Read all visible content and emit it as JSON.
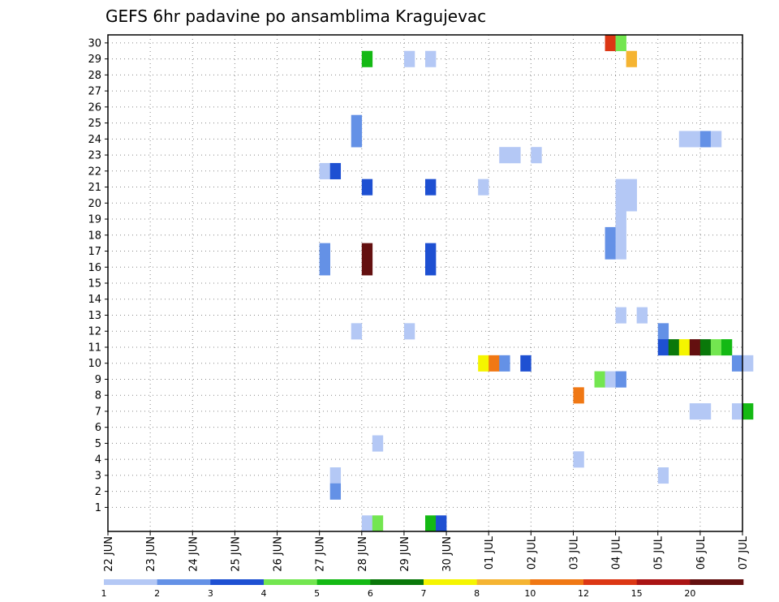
{
  "chart_data": {
    "type": "heatmap",
    "title": "GEFS 6hr padavine po ansamblima Kragujevac",
    "y_categories": [
      "1",
      "2",
      "3",
      "4",
      "5",
      "6",
      "7",
      "8",
      "9",
      "10",
      "11",
      "12",
      "13",
      "14",
      "15",
      "16",
      "17",
      "18",
      "19",
      "20",
      "21",
      "22",
      "23",
      "24",
      "25",
      "26",
      "27",
      "28",
      "29",
      "30"
    ],
    "x_tick_labels": [
      "22 JUN",
      "23 JUN",
      "24 JUN",
      "25 JUN",
      "26 JUN",
      "27 JUN",
      "28 JUN",
      "29 JUN",
      "30 JUN",
      "01 JUL",
      "02 JUL",
      "03 JUL",
      "04 JUL",
      "05 JUL",
      "06 JUL",
      "07 JUL"
    ],
    "x_range_days": [
      0,
      15
    ],
    "steps_per_day": 4,
    "grid": true,
    "colorbar": {
      "colors": [
        "#b4c8f5",
        "#6491e6",
        "#1e50d2",
        "#73e650",
        "#14b914",
        "#0a780a",
        "#f5f500",
        "#f5b432",
        "#f07814",
        "#dc3714",
        "#aa1414",
        "#641010"
      ],
      "tick_labels": [
        "1",
        "2",
        "3",
        "4",
        "5",
        "6",
        "7",
        "8",
        "10",
        "12",
        "15",
        "20"
      ]
    },
    "cells": [
      {
        "member": 30,
        "step": 47,
        "level": 10
      },
      {
        "member": 30,
        "step": 48,
        "level": 4
      },
      {
        "member": 29,
        "step": 24,
        "level": 5
      },
      {
        "member": 29,
        "step": 28,
        "level": 1
      },
      {
        "member": 29,
        "step": 30,
        "level": 1
      },
      {
        "member": 29,
        "step": 49,
        "level": 8
      },
      {
        "member": 24,
        "step": 23,
        "level": 2
      },
      {
        "member": 24,
        "step": 54,
        "level": 1
      },
      {
        "member": 24,
        "step": 55,
        "level": 1
      },
      {
        "member": 24,
        "step": 56,
        "level": 2
      },
      {
        "member": 24,
        "step": 57,
        "level": 1
      },
      {
        "member": 25,
        "step": 23,
        "level": 2
      },
      {
        "member": 23,
        "step": 37,
        "level": 1
      },
      {
        "member": 23,
        "step": 38,
        "level": 1
      },
      {
        "member": 23,
        "step": 40,
        "level": 1
      },
      {
        "member": 22,
        "step": 20,
        "level": 1
      },
      {
        "member": 22,
        "step": 21,
        "level": 3
      },
      {
        "member": 21,
        "step": 24,
        "level": 3
      },
      {
        "member": 21,
        "step": 30,
        "level": 3
      },
      {
        "member": 21,
        "step": 35,
        "level": 1
      },
      {
        "member": 21,
        "step": 48,
        "level": 1
      },
      {
        "member": 21,
        "step": 49,
        "level": 1
      },
      {
        "member": 20,
        "step": 48,
        "level": 1
      },
      {
        "member": 20,
        "step": 49,
        "level": 1
      },
      {
        "member": 19,
        "step": 48,
        "level": 1
      },
      {
        "member": 18,
        "step": 47,
        "level": 2
      },
      {
        "member": 18,
        "step": 48,
        "level": 1
      },
      {
        "member": 17,
        "step": 47,
        "level": 2
      },
      {
        "member": 17,
        "step": 48,
        "level": 1
      },
      {
        "member": 17,
        "step": 20,
        "level": 2
      },
      {
        "member": 17,
        "step": 24,
        "level": 12
      },
      {
        "member": 17,
        "step": 30,
        "level": 3
      },
      {
        "member": 16,
        "step": 20,
        "level": 2
      },
      {
        "member": 16,
        "step": 24,
        "level": 12
      },
      {
        "member": 16,
        "step": 30,
        "level": 3
      },
      {
        "member": 13,
        "step": 48,
        "level": 1
      },
      {
        "member": 13,
        "step": 50,
        "level": 1
      },
      {
        "member": 12,
        "step": 23,
        "level": 1
      },
      {
        "member": 12,
        "step": 28,
        "level": 1
      },
      {
        "member": 12,
        "step": 52,
        "level": 2
      },
      {
        "member": 11,
        "step": 52,
        "level": 3
      },
      {
        "member": 11,
        "step": 53,
        "level": 6
      },
      {
        "member": 11,
        "step": 54,
        "level": 7
      },
      {
        "member": 11,
        "step": 55,
        "level": 12
      },
      {
        "member": 11,
        "step": 56,
        "level": 6
      },
      {
        "member": 11,
        "step": 57,
        "level": 4
      },
      {
        "member": 11,
        "step": 58,
        "level": 5
      },
      {
        "member": 10,
        "step": 35,
        "level": 7
      },
      {
        "member": 10,
        "step": 36,
        "level": 9
      },
      {
        "member": 10,
        "step": 37,
        "level": 2
      },
      {
        "member": 10,
        "step": 39,
        "level": 3
      },
      {
        "member": 10,
        "step": 59,
        "level": 2
      },
      {
        "member": 10,
        "step": 60,
        "level": 1
      },
      {
        "member": 9,
        "step": 46,
        "level": 4
      },
      {
        "member": 9,
        "step": 47,
        "level": 1
      },
      {
        "member": 9,
        "step": 48,
        "level": 2
      },
      {
        "member": 8,
        "step": 44,
        "level": 9
      },
      {
        "member": 7,
        "step": 55,
        "level": 1
      },
      {
        "member": 7,
        "step": 56,
        "level": 1
      },
      {
        "member": 7,
        "step": 59,
        "level": 1
      },
      {
        "member": 7,
        "step": 60,
        "level": 5
      },
      {
        "member": 5,
        "step": 25,
        "level": 1
      },
      {
        "member": 4,
        "step": 44,
        "level": 1
      },
      {
        "member": 3,
        "step": 21,
        "level": 1
      },
      {
        "member": 3,
        "step": 52,
        "level": 1
      },
      {
        "member": 2,
        "step": 21,
        "level": 2
      },
      {
        "member": 0,
        "step": 24,
        "level": 1
      },
      {
        "member": 0,
        "step": 25,
        "level": 4
      },
      {
        "member": 0,
        "step": 30,
        "level": 5
      },
      {
        "member": 0,
        "step": 31,
        "level": 3
      }
    ]
  }
}
